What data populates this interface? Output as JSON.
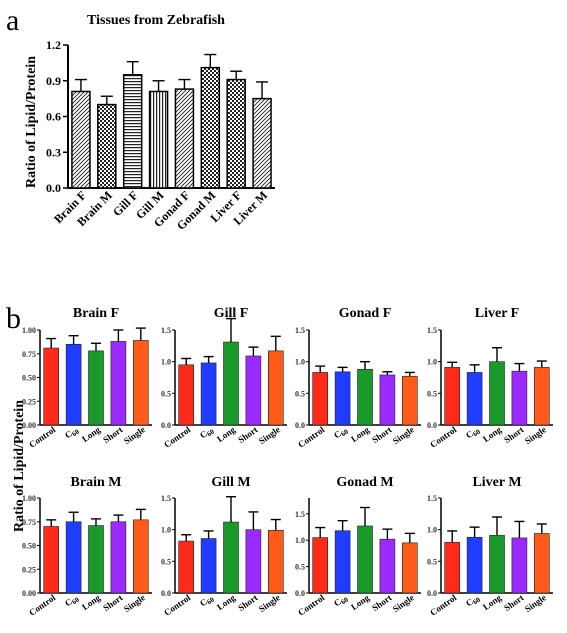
{
  "panel_a_letter": "a",
  "panel_b_letter": "b",
  "palette": [
    "#ff2a1a",
    "#1f3cff",
    "#1a9a2a",
    "#9a2aff",
    "#ff5a1a"
  ],
  "chart_data": [
    {
      "type": "bar",
      "title": "Tissues from Zebrafish",
      "ylabel": "Ratio of Lipid/Protein",
      "categories": [
        "Brain F",
        "Brain M",
        "Gill F",
        "Gill M",
        "Gonad F",
        "Gonad M",
        "Liver F",
        "Liver M"
      ],
      "values": [
        0.81,
        0.7,
        0.95,
        0.81,
        0.83,
        1.01,
        0.91,
        0.75
      ],
      "errors": [
        0.1,
        0.07,
        0.11,
        0.09,
        0.08,
        0.11,
        0.07,
        0.14
      ],
      "hatch": [
        "diag",
        "check",
        "hlines",
        "vlines",
        "diag",
        "check",
        "check",
        "diag"
      ],
      "ylim": [
        0,
        1.2
      ],
      "yticks": [
        "0.0",
        "0.3",
        "0.6",
        "0.9",
        "1.2"
      ]
    },
    {
      "type": "bar",
      "ylabel": "Ratio of Lipid/Protein",
      "categories": [
        "Control",
        "C60",
        "Long",
        "Short",
        "Single"
      ],
      "c60_main": "C",
      "c60_sub": "60",
      "panels": [
        {
          "title": "Brain F",
          "values": [
            0.81,
            0.85,
            0.78,
            0.88,
            0.89
          ],
          "errors": [
            0.1,
            0.09,
            0.08,
            0.12,
            0.13
          ],
          "ylim": [
            0,
            1.0
          ],
          "yticks": [
            "0.00",
            "0.25",
            "0.50",
            "0.75",
            "1.00"
          ]
        },
        {
          "title": "Gill F",
          "values": [
            0.95,
            0.98,
            1.31,
            1.09,
            1.17
          ],
          "errors": [
            0.1,
            0.1,
            0.37,
            0.14,
            0.23
          ],
          "ylim": [
            0,
            1.5
          ],
          "yticks": [
            "0.0",
            "0.5",
            "1.0",
            "1.5"
          ]
        },
        {
          "title": "Gonad F",
          "values": [
            0.83,
            0.84,
            0.88,
            0.79,
            0.77
          ],
          "errors": [
            0.1,
            0.07,
            0.12,
            0.05,
            0.06
          ],
          "ylim": [
            0,
            1.5
          ],
          "yticks": [
            "0.0",
            "0.5",
            "1.0",
            "1.5"
          ]
        },
        {
          "title": "Liver F",
          "values": [
            0.91,
            0.83,
            1.0,
            0.85,
            0.91
          ],
          "errors": [
            0.08,
            0.12,
            0.22,
            0.12,
            0.1
          ],
          "ylim": [
            0,
            1.5
          ],
          "yticks": [
            "0.0",
            "0.5",
            "1.0",
            "1.5"
          ]
        },
        {
          "title": "Brain M",
          "values": [
            0.7,
            0.75,
            0.71,
            0.75,
            0.77
          ],
          "errors": [
            0.07,
            0.1,
            0.07,
            0.07,
            0.11
          ],
          "ylim": [
            0,
            1.0
          ],
          "yticks": [
            "0.00",
            "0.25",
            "0.50",
            "0.75",
            "1.00"
          ]
        },
        {
          "title": "Gill M",
          "values": [
            0.82,
            0.86,
            1.12,
            1.0,
            0.99
          ],
          "errors": [
            0.1,
            0.12,
            0.4,
            0.28,
            0.17
          ],
          "ylim": [
            0,
            1.5
          ],
          "yticks": [
            "0.0",
            "0.5",
            "1.0",
            "1.5"
          ]
        },
        {
          "title": "Gonad M",
          "values": [
            1.05,
            1.18,
            1.27,
            1.02,
            0.95
          ],
          "errors": [
            0.19,
            0.19,
            0.35,
            0.19,
            0.18
          ],
          "ylim": [
            0,
            1.8
          ],
          "yticks": [
            "0.0",
            "0.5",
            "1.0",
            "1.5"
          ]
        },
        {
          "title": "Liver M",
          "values": [
            0.8,
            0.88,
            0.91,
            0.87,
            0.94
          ],
          "errors": [
            0.18,
            0.16,
            0.29,
            0.26,
            0.15
          ],
          "ylim": [
            0,
            1.5
          ],
          "yticks": [
            "0.0",
            "0.5",
            "1.0",
            "1.5"
          ]
        }
      ]
    }
  ]
}
